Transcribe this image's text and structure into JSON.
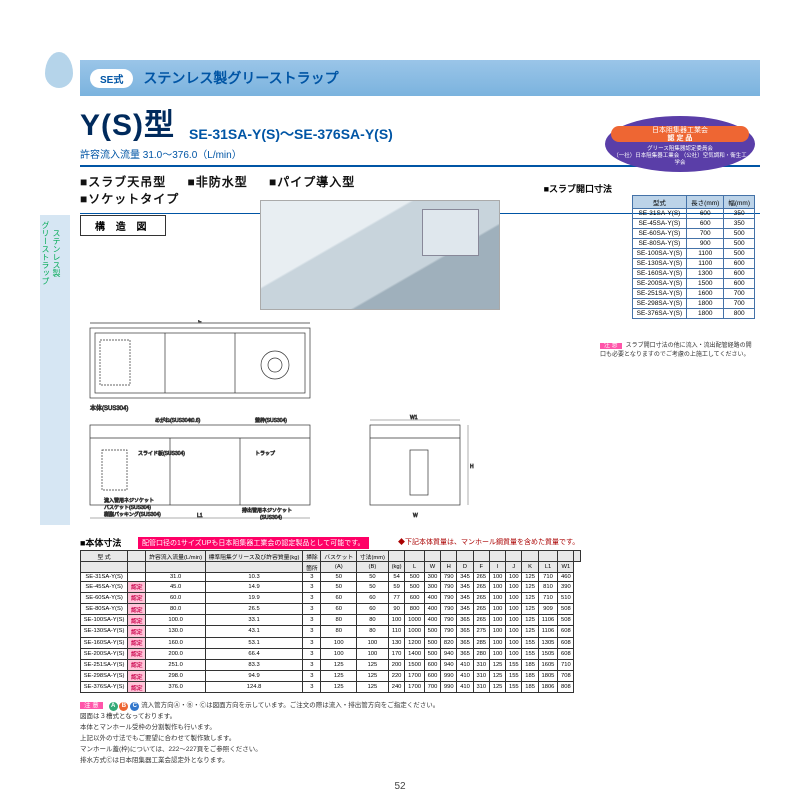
{
  "header": {
    "series_tag": "SE式",
    "series_label": "ステンレス製グリーストラップ",
    "title": "Y(S)型",
    "model_range": "SE-31SA-Y(S)～SE-376SA-Y(S)",
    "flow_line": "許容流入流量 31.0～376.0（L/min）",
    "feature_tags": [
      "■スラブ天吊型",
      "■非防水型",
      "■パイプ導入型",
      "■ソケットタイプ"
    ]
  },
  "labels": {
    "structure": "構 造 図",
    "slab_title": "■スラブ開口寸法",
    "spec_title": "■本体寸法",
    "spec_note": "配管口径の1サイズUPも日本阻集器工業会の認定製品として可能です。",
    "spec_note2": "◆下記本体質量は、マンホール鋼質量を含めた質量です。"
  },
  "cert": {
    "line1": "日本阻集器工業会",
    "line2": "認 定 品",
    "line3": "グリース阻集器認定委員会",
    "line4": "（一社）日本阻集器工業会 （公社）空気調和・衛生工学会"
  },
  "slab_table": {
    "headers": [
      "型式",
      "長さ(mm)",
      "幅(mm)"
    ],
    "rows": [
      [
        "SE-31SA-Y(S)",
        "600",
        "350"
      ],
      [
        "SE-45SA-Y(S)",
        "600",
        "350"
      ],
      [
        "SE-60SA-Y(S)",
        "700",
        "500"
      ],
      [
        "SE-80SA-Y(S)",
        "900",
        "500"
      ],
      [
        "SE-100SA-Y(S)",
        "1100",
        "500"
      ],
      [
        "SE-130SA-Y(S)",
        "1100",
        "600"
      ],
      [
        "SE-160SA-Y(S)",
        "1300",
        "600"
      ],
      [
        "SE-200SA-Y(S)",
        "1500",
        "600"
      ],
      [
        "SE-251SA-Y(S)",
        "1600",
        "700"
      ],
      [
        "SE-298SA-Y(S)",
        "1800",
        "700"
      ],
      [
        "SE-376SA-Y(S)",
        "1800",
        "800"
      ]
    ]
  },
  "caution1": {
    "label": "注 意",
    "text": "スラブ開口寸法の他に流入・流出配管経路の開口も必要となりますのでご考慮の上施工してください。"
  },
  "spec_table": {
    "header_top": [
      "型 式",
      "",
      "許容流入流量(L/min)",
      "標準阻集グリース及び許容質量(kg)",
      "掃除",
      "バスケット",
      "寸法(mm)",
      "",
      "",
      "",
      "",
      "",
      "",
      "",
      "",
      "",
      "",
      "",
      ""
    ],
    "header_mid": [
      "",
      "",
      "",
      "",
      "箇所",
      "(A)",
      "(B)",
      "(kg)",
      "L",
      "W",
      "H",
      "D",
      "F",
      "I",
      "J",
      "K",
      "L1",
      "W1"
    ],
    "rows": [
      [
        "SE-31SA-Y(S)",
        "",
        "31.0",
        "10.3",
        "3",
        "50",
        "50",
        "54",
        "500",
        "300",
        "790",
        "345",
        "265",
        "100",
        "100",
        "125",
        "710",
        "460"
      ],
      [
        "SE-45SA-Y(S)",
        "認定",
        "45.0",
        "14.9",
        "3",
        "50",
        "50",
        "59",
        "500",
        "300",
        "790",
        "345",
        "265",
        "100",
        "100",
        "125",
        "810",
        "390"
      ],
      [
        "SE-60SA-Y(S)",
        "認定",
        "60.0",
        "19.9",
        "3",
        "60",
        "60",
        "77",
        "600",
        "400",
        "790",
        "345",
        "265",
        "100",
        "100",
        "125",
        "710",
        "510"
      ],
      [
        "SE-80SA-Y(S)",
        "認定",
        "80.0",
        "26.5",
        "3",
        "60",
        "60",
        "90",
        "800",
        "400",
        "790",
        "345",
        "265",
        "100",
        "100",
        "125",
        "909",
        "508"
      ],
      [
        "SE-100SA-Y(S)",
        "認定",
        "100.0",
        "33.1",
        "3",
        "80",
        "80",
        "100",
        "1000",
        "400",
        "790",
        "365",
        "265",
        "100",
        "100",
        "125",
        "1106",
        "508"
      ],
      [
        "SE-130SA-Y(S)",
        "認定",
        "130.0",
        "43.1",
        "3",
        "80",
        "80",
        "110",
        "1000",
        "500",
        "790",
        "365",
        "275",
        "100",
        "100",
        "125",
        "1106",
        "608"
      ],
      [
        "SE-160SA-Y(S)",
        "認定",
        "160.0",
        "53.1",
        "3",
        "100",
        "100",
        "130",
        "1200",
        "500",
        "820",
        "365",
        "285",
        "100",
        "100",
        "155",
        "1305",
        "608"
      ],
      [
        "SE-200SA-Y(S)",
        "認定",
        "200.0",
        "66.4",
        "3",
        "100",
        "100",
        "170",
        "1400",
        "500",
        "940",
        "365",
        "280",
        "100",
        "100",
        "155",
        "1505",
        "608"
      ],
      [
        "SE-251SA-Y(S)",
        "認定",
        "251.0",
        "83.3",
        "3",
        "125",
        "125",
        "200",
        "1500",
        "600",
        "940",
        "410",
        "310",
        "125",
        "155",
        "185",
        "1605",
        "710"
      ],
      [
        "SE-298SA-Y(S)",
        "認定",
        "298.0",
        "94.9",
        "3",
        "125",
        "125",
        "220",
        "1700",
        "600",
        "990",
        "410",
        "310",
        "125",
        "155",
        "185",
        "1805",
        "708"
      ],
      [
        "SE-376SA-Y(S)",
        "認定",
        "376.0",
        "124.8",
        "3",
        "125",
        "125",
        "240",
        "1700",
        "700",
        "990",
        "410",
        "310",
        "125",
        "155",
        "185",
        "1806",
        "808"
      ]
    ]
  },
  "notes": {
    "label": "注 意",
    "lines": [
      "流入管方向Ⓐ・Ⓑ・Ⓒは図面方向を示しています。ご注文の際は流入・排出管方向をご指定ください。",
      "図面は３槽式となっております。",
      "本体とマンホール受枠の分割製作も行います。",
      "上記以外の寸法でもご要望に合わせて製作致します。",
      "マンホール蓋(枠)については、222～227頁をご参照ください。",
      "排水方式Ⓒは日本阻集器工業会認定外となります。"
    ]
  },
  "colors": {
    "brand_blue": "#0055a5",
    "band_blue": "#7bb3de",
    "accent_pink": "#f06",
    "table_border": "#4472a8"
  },
  "page_number": "52"
}
